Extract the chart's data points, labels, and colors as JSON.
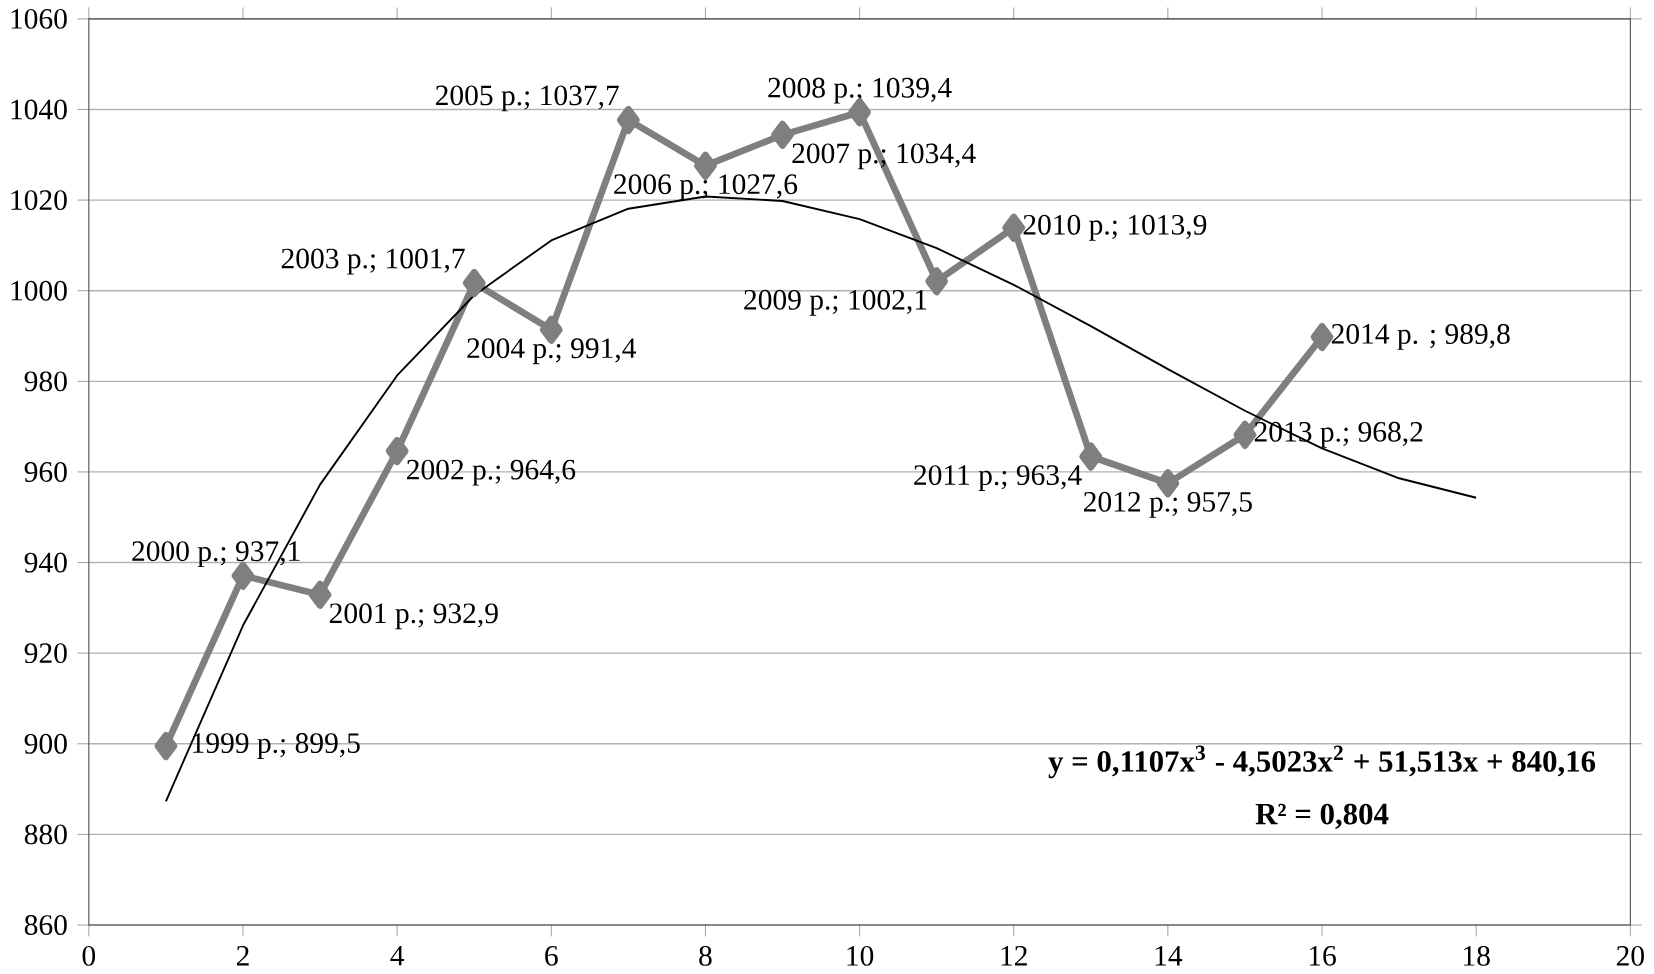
{
  "chart_data": {
    "type": "line",
    "xlim": [
      0,
      20
    ],
    "ylim": [
      860,
      1060
    ],
    "xticks": [
      0,
      2,
      4,
      6,
      8,
      10,
      12,
      14,
      16,
      18,
      20
    ],
    "yticks": [
      860,
      880,
      900,
      920,
      940,
      960,
      980,
      1000,
      1020,
      1040,
      1060
    ],
    "grid": "y",
    "marker": "diamond",
    "line_style": "solid",
    "series": [
      {
        "color": "#7f7f7f",
        "x": [
          1,
          2,
          3,
          4,
          5,
          6,
          7,
          8,
          9,
          10,
          11,
          12,
          13,
          14,
          15,
          16
        ],
        "values": [
          899.5,
          937.1,
          932.9,
          964.6,
          1001.7,
          991.4,
          1037.7,
          1027.6,
          1034.4,
          1039.4,
          1002.1,
          1013.9,
          963.4,
          957.5,
          968.2,
          989.8
        ],
        "value_labels": [
          "1999 р.; 899,5",
          "2000 р.; 937,1",
          "2001 р.; 932,9",
          "2002 р.; 964,6",
          "2003 р.; 1001,7",
          "2004 р.; 991,4",
          "2005 р.; 1037,7",
          "2006 р.; 1027,6",
          "2007 р.; 1034,4",
          "2008 р.; 1039,4",
          "2009 р.; 1002,1",
          "2010 р.; 1013,9",
          "2011 р.; 963,4",
          "2012 р.; 957,5",
          "2013 р.; 968,2",
          "2014 р. ; 989,8"
        ]
      },
      {
        "type": "line",
        "color": "#000000",
        "marker": "none",
        "x": [
          1,
          2,
          3,
          4,
          5,
          6,
          7,
          8,
          9,
          10,
          11,
          12,
          13,
          14,
          15,
          16,
          17,
          18
        ],
        "values": [
          887.3,
          926.1,
          957.2,
          981.3,
          999.0,
          1011.1,
          1018.1,
          1020.8,
          1019.8,
          1015.8,
          1009.4,
          1001.3,
          992.2,
          982.7,
          973.5,
          965.2,
          958.6,
          954.3
        ]
      }
    ],
    "annotations": [
      "**y = 0,1107x$^{3}$ - 4,5023x$^{2}$ + 51,513x + 840,16**",
      "**R² = 0,804**"
    ]
  }
}
